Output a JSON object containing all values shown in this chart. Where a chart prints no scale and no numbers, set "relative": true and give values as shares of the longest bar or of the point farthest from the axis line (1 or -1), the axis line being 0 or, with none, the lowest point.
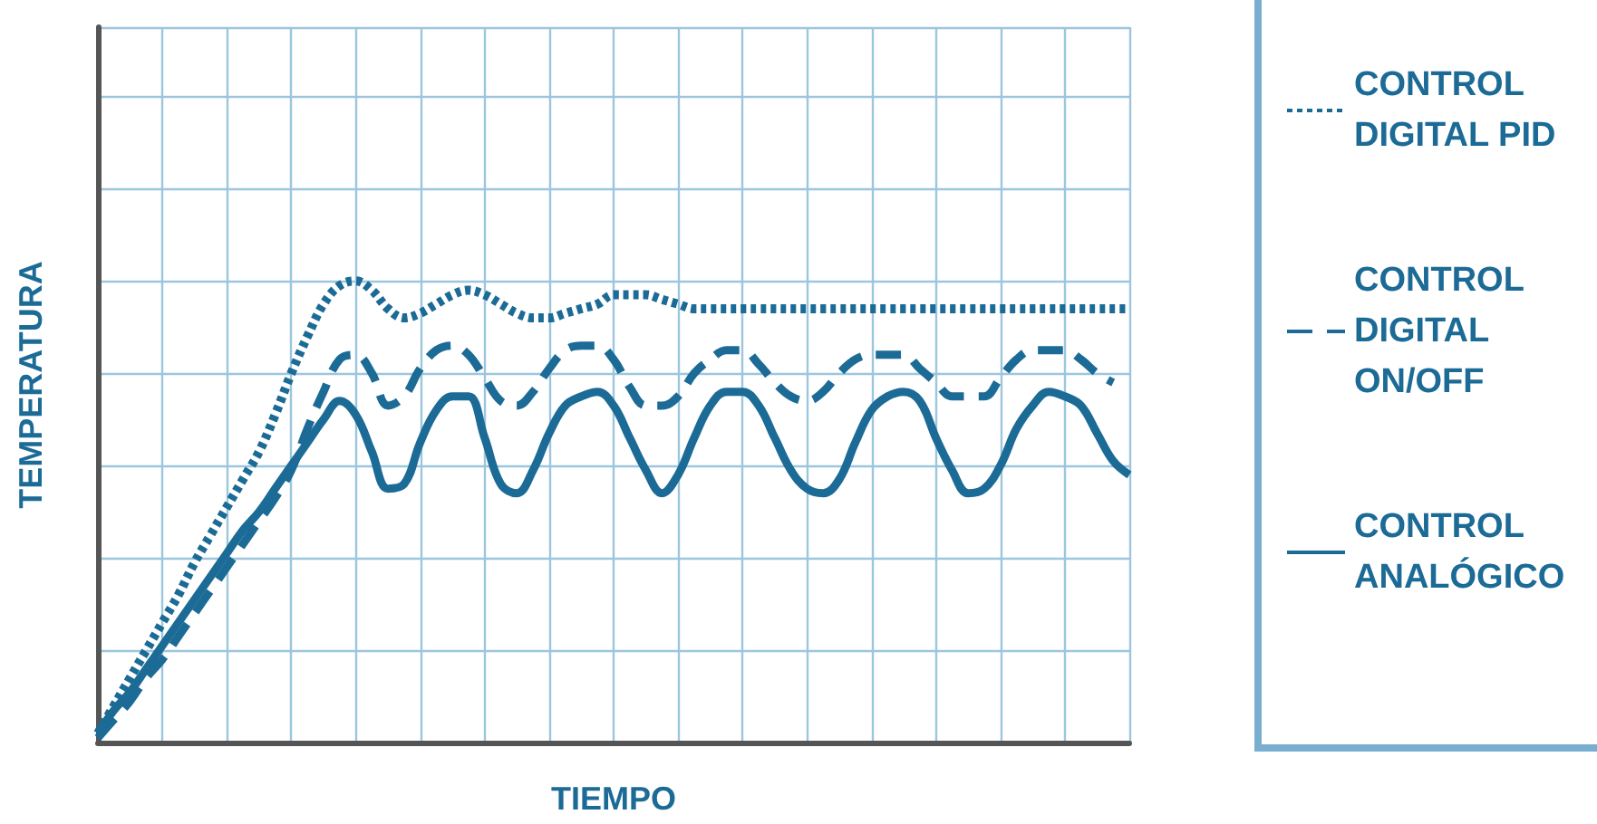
{
  "chart_data": {
    "type": "line",
    "xlabel": "TIEMPO",
    "ylabel": "TEMPERATURA",
    "relative": true,
    "grid": true,
    "legend": "right",
    "marker": "none",
    "categories": [
      null,
      null,
      null,
      null,
      null,
      null,
      null,
      null,
      null,
      null,
      null,
      null,
      null,
      null,
      null,
      null,
      null,
      null,
      null,
      null,
      null,
      null,
      null,
      null,
      null,
      null,
      null,
      null,
      null,
      null,
      null,
      null,
      null,
      null,
      null,
      null,
      null,
      null,
      null,
      null,
      null,
      null,
      null,
      null,
      null,
      null,
      null,
      null,
      null,
      null,
      null,
      null,
      null,
      null,
      null,
      null,
      null,
      null,
      null,
      null,
      null,
      null,
      null,
      null,
      null
    ],
    "series": [
      {
        "name": "CONTROL DIGITAL PID",
        "color": "#1c6b96",
        "line_style": "dotted",
        "values": [
          0.02,
          0.08,
          0.14,
          0.2,
          0.26,
          0.32,
          0.39,
          0.45,
          0.51,
          0.57,
          0.63,
          0.71,
          0.8,
          0.88,
          0.95,
          0.99,
          1.0,
          0.98,
          0.94,
          0.92,
          0.93,
          0.95,
          0.97,
          0.98,
          0.97,
          0.95,
          0.93,
          0.92,
          0.92,
          0.93,
          0.94,
          0.95,
          0.97,
          0.97,
          0.97,
          0.96,
          0.95,
          0.94,
          0.94,
          0.94,
          0.94,
          0.94,
          0.94,
          0.94,
          0.94,
          0.94,
          0.94,
          0.94,
          0.94,
          0.94,
          0.94,
          0.94,
          0.94,
          0.94,
          0.94,
          0.94,
          0.94,
          0.94,
          0.94,
          0.94,
          0.94,
          0.94,
          0.94,
          0.94,
          0.94
        ]
      },
      {
        "name": "CONTROL DIGITAL ON/OFF",
        "color": "#1c6b96",
        "line_style": "dashed",
        "values": [
          0.01,
          0.05,
          0.09,
          0.14,
          0.18,
          0.23,
          0.28,
          0.33,
          0.38,
          0.43,
          0.48,
          0.53,
          0.59,
          0.68,
          0.76,
          0.83,
          0.84,
          0.8,
          0.73,
          0.75,
          0.81,
          0.85,
          0.86,
          0.84,
          0.79,
          0.74,
          0.73,
          0.76,
          0.81,
          0.85,
          0.86,
          0.86,
          0.83,
          0.77,
          0.73,
          0.73,
          0.75,
          0.8,
          0.83,
          0.85,
          0.85,
          0.82,
          0.78,
          0.75,
          0.74,
          0.76,
          0.8,
          0.83,
          0.84,
          0.84,
          0.84,
          0.81,
          0.78,
          0.75,
          0.75,
          0.75,
          0.79,
          0.83,
          0.85,
          0.85,
          0.85,
          0.83,
          0.8,
          0.78,
          null
        ]
      },
      {
        "name": "CONTROL ANALÓGICO",
        "color": "#1c6b96",
        "line_style": "solid",
        "values": [
          0.02,
          0.07,
          0.11,
          0.16,
          0.21,
          0.26,
          0.31,
          0.36,
          0.41,
          0.46,
          0.5,
          0.55,
          0.6,
          0.65,
          0.7,
          0.74,
          0.71,
          0.63,
          0.55,
          0.56,
          0.65,
          0.72,
          0.75,
          0.75,
          0.66,
          0.56,
          0.54,
          0.59,
          0.67,
          0.73,
          0.75,
          0.76,
          0.73,
          0.66,
          0.59,
          0.54,
          0.58,
          0.66,
          0.73,
          0.76,
          0.76,
          0.73,
          0.66,
          0.59,
          0.55,
          0.54,
          0.57,
          0.65,
          0.72,
          0.75,
          0.76,
          0.74,
          0.66,
          0.59,
          0.54,
          0.55,
          0.6,
          0.68,
          0.73,
          0.76,
          0.75,
          0.73,
          0.67,
          0.61,
          0.58
        ]
      }
    ]
  }
}
